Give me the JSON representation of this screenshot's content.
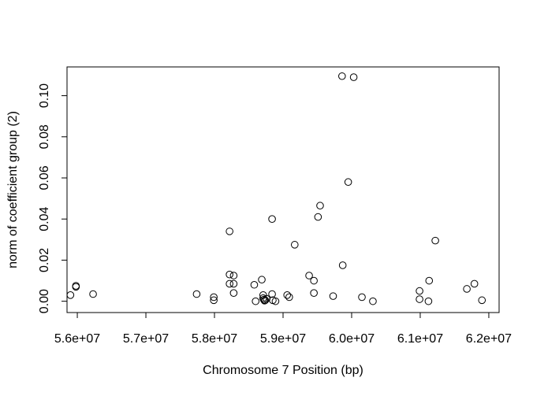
{
  "chart_data": {
    "type": "scatter",
    "title": "",
    "xlabel": "Chromosome 7 Position (bp)",
    "ylabel": "norm of coefficient group (2)",
    "xlim": [
      55850000,
      62150000
    ],
    "ylim": [
      -0.0055,
      0.114
    ],
    "x_ticks": [
      56000000,
      57000000,
      58000000,
      59000000,
      60000000,
      61000000,
      62000000
    ],
    "x_tick_labels": [
      "5.6e+07",
      "5.7e+07",
      "5.8e+07",
      "5.9e+07",
      "6.0e+07",
      "6.1e+07",
      "6.2e+07"
    ],
    "y_ticks": [
      0.0,
      0.02,
      0.04,
      0.06,
      0.08,
      0.1
    ],
    "y_tick_labels": [
      "0.00",
      "0.02",
      "0.04",
      "0.06",
      "0.08",
      "0.10"
    ],
    "grid": false,
    "marker": "open-circle",
    "point_color": "#000000",
    "points": [
      [
        55900000,
        0.003
      ],
      [
        55980000,
        0.0075
      ],
      [
        55980000,
        0.007
      ],
      [
        56230000,
        0.0035
      ],
      [
        57740000,
        0.0035
      ],
      [
        57990000,
        0.002
      ],
      [
        57990000,
        0.0005
      ],
      [
        58220000,
        0.034
      ],
      [
        58220000,
        0.013
      ],
      [
        58220000,
        0.0085
      ],
      [
        58280000,
        0.0125
      ],
      [
        58280000,
        0.0085
      ],
      [
        58280000,
        0.004
      ],
      [
        58580000,
        0.008
      ],
      [
        58690000,
        0.0105
      ],
      [
        58600000,
        0.0
      ],
      [
        58710000,
        0.003
      ],
      [
        58710000,
        0.0015
      ],
      [
        58720000,
        0.0008
      ],
      [
        58730000,
        0.0003
      ],
      [
        58740000,
        0.0005
      ],
      [
        58760000,
        0.0012
      ],
      [
        58840000,
        0.04
      ],
      [
        58840000,
        0.0035
      ],
      [
        58850000,
        0.0005
      ],
      [
        58890000,
        0.0
      ],
      [
        59060000,
        0.003
      ],
      [
        59090000,
        0.002
      ],
      [
        59170000,
        0.0275
      ],
      [
        59380000,
        0.0125
      ],
      [
        59450000,
        0.01
      ],
      [
        59450000,
        0.004
      ],
      [
        59510000,
        0.041
      ],
      [
        59540000,
        0.0465
      ],
      [
        59730000,
        0.0025
      ],
      [
        59860000,
        0.1095
      ],
      [
        59870000,
        0.0175
      ],
      [
        59950000,
        0.058
      ],
      [
        60030000,
        0.109
      ],
      [
        60150000,
        0.002
      ],
      [
        60310000,
        0.0
      ],
      [
        60990000,
        0.005
      ],
      [
        60990000,
        0.001
      ],
      [
        61120000,
        0.0
      ],
      [
        61130000,
        0.01
      ],
      [
        61220000,
        0.0295
      ],
      [
        61680000,
        0.006
      ],
      [
        61790000,
        0.0085
      ],
      [
        61900000,
        0.0005
      ]
    ]
  }
}
